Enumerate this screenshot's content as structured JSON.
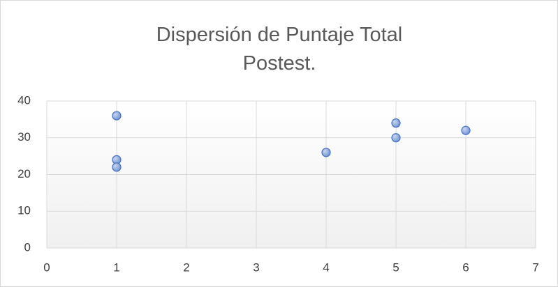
{
  "chart_data": {
    "type": "scatter",
    "title": "Dispersión de Puntaje Total Postest.",
    "x": [
      1,
      1,
      1,
      4,
      5,
      5,
      6
    ],
    "values": [
      36,
      24,
      22,
      26,
      34,
      30,
      32
    ],
    "color": "#4472c4",
    "xlim": [
      0,
      7
    ],
    "xticks": [
      0,
      1,
      2,
      3,
      4,
      5,
      6,
      7
    ],
    "ylim": [
      0,
      40
    ],
    "yticks": [
      0,
      10,
      20,
      30,
      40
    ],
    "grid": true
  }
}
